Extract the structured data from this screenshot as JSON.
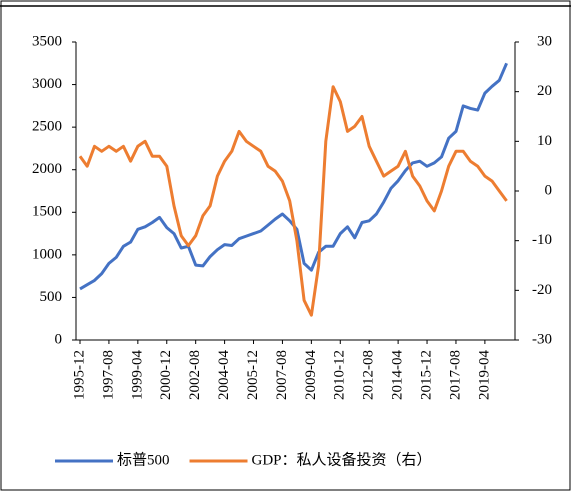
{
  "chart_data": {
    "type": "line",
    "categories": [
      "1995-12",
      null,
      null,
      null,
      "1997-08",
      null,
      null,
      null,
      "1999-04",
      null,
      null,
      null,
      "2000-12",
      null,
      null,
      null,
      "2002-08",
      null,
      null,
      null,
      "2004-04",
      null,
      null,
      null,
      "2005-12",
      null,
      null,
      null,
      "2007-08",
      null,
      null,
      null,
      "2009-04",
      null,
      null,
      null,
      "2010-12",
      null,
      null,
      null,
      "2012-08",
      null,
      null,
      null,
      "2014-04",
      null,
      null,
      null,
      "2015-12",
      null,
      null,
      null,
      "2017-08",
      null,
      null,
      null,
      "2019-04",
      null,
      null,
      null
    ],
    "series": [
      {
        "name": "标普500",
        "color": "#4472c4",
        "values": [
          600,
          650,
          700,
          780,
          900,
          970,
          1100,
          1150,
          1300,
          1330,
          1380,
          1440,
          1320,
          1250,
          1080,
          1100,
          880,
          870,
          980,
          1060,
          1120,
          1110,
          1190,
          1220,
          1250,
          1280,
          1350,
          1420,
          1480,
          1400,
          1300,
          900,
          820,
          1030,
          1100,
          1100,
          1250,
          1330,
          1200,
          1380,
          1400,
          1480,
          1620,
          1780,
          1870,
          1990,
          2080,
          2100,
          2040,
          2080,
          2150,
          2370,
          2450,
          2750,
          2720,
          2700,
          2900,
          2980,
          3050,
          3250
        ]
      },
      {
        "name": "GDP：私人设备投资（右）",
        "color": "#ed7d31",
        "axis": "y2",
        "values": [
          7,
          5,
          9,
          8,
          9,
          8,
          9,
          6,
          9,
          10,
          7,
          7,
          5,
          -3,
          -9,
          -11,
          -9,
          -5,
          -3,
          3,
          6,
          8,
          12,
          10,
          9,
          8,
          5,
          4,
          2,
          -2,
          -10,
          -22,
          -25,
          -15,
          10,
          21,
          18,
          12,
          13,
          15,
          9,
          6,
          3,
          4,
          5,
          8,
          3,
          1,
          -2,
          -4,
          0,
          5,
          8,
          8,
          6,
          5,
          3,
          2,
          0,
          -2
        ]
      }
    ],
    "ylim": [
      0,
      3500
    ],
    "yticks": [
      0,
      500,
      1000,
      1500,
      2000,
      2500,
      3000,
      3500
    ],
    "y2lim": [
      -30,
      30
    ],
    "y2ticks": [
      -30,
      -20,
      -10,
      0,
      10,
      20,
      30
    ]
  }
}
